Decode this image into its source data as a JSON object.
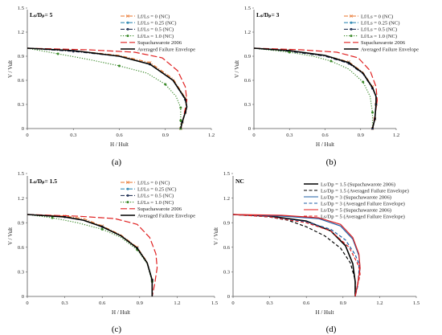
{
  "figure": {
    "panels": [
      {
        "label": "(a)",
        "title": "Lₛ/Dₚ= 5"
      },
      {
        "label": "(b)",
        "title": "Lₛ/Dₚ= 3"
      },
      {
        "label": "(c)",
        "title": "Lₛ/Dₚ= 1.5"
      },
      {
        "label": "(d)",
        "title": "NC"
      }
    ]
  },
  "chart_data": [
    {
      "type": "line",
      "title": "Lₛ/Dₚ= 5",
      "xlabel": "H / Hult",
      "ylabel": "V / Vult",
      "xlim": [
        0,
        1.2
      ],
      "ylim": [
        0,
        1.5
      ],
      "xticks": [
        "0",
        "0.3",
        "0.6",
        "0.9",
        "1.2"
      ],
      "yticks": [
        "0",
        "0.3",
        "0.6",
        "0.9",
        "1.2",
        "1.5"
      ],
      "grid": false,
      "legend_position": "top-right",
      "series": [
        {
          "name": "Lf/Ls = 0 (NC)",
          "color": "#e8732a",
          "style": "dashdot",
          "marker": "x",
          "x": [
            0,
            0.3,
            0.6,
            0.8,
            0.95,
            1.03,
            1.04,
            1.03,
            1.01,
            1.0
          ],
          "y": [
            1.0,
            0.97,
            0.91,
            0.82,
            0.62,
            0.38,
            0.28,
            0.2,
            0.08,
            0
          ]
        },
        {
          "name": "Lf/Ls = 0.25 (NC)",
          "color": "#3a8fb7",
          "style": "dashdot",
          "marker": "circle",
          "x": [
            0,
            0.3,
            0.6,
            0.8,
            0.95,
            1.03,
            1.04,
            1.03,
            1.01,
            1.0
          ],
          "y": [
            1.0,
            0.97,
            0.9,
            0.8,
            0.6,
            0.36,
            0.27,
            0.2,
            0.08,
            0
          ]
        },
        {
          "name": "Lf/Ls = 0.5 (NC)",
          "color": "#2a3a5c",
          "style": "dashdot",
          "marker": "circle",
          "x": [
            0,
            0.3,
            0.6,
            0.8,
            0.95,
            1.03,
            1.04,
            1.03,
            1.01,
            1.0
          ],
          "y": [
            1.0,
            0.96,
            0.9,
            0.8,
            0.6,
            0.36,
            0.27,
            0.2,
            0.08,
            0
          ]
        },
        {
          "name": "Lf/Ls = 1.0 (NC)",
          "color": "#3b8a2a",
          "style": "dotted",
          "marker": "circle",
          "x": [
            0,
            0.2,
            0.4,
            0.6,
            0.78,
            0.9,
            0.97,
            1.0,
            1.0,
            1.0
          ],
          "y": [
            1.0,
            0.93,
            0.86,
            0.78,
            0.69,
            0.55,
            0.4,
            0.26,
            0.1,
            0
          ]
        },
        {
          "name": "Supachawarote 2006",
          "color": "#e02020",
          "style": "longdash",
          "marker": "none",
          "x": [
            0,
            0.4,
            0.7,
            0.88,
            0.98,
            1.03,
            1.04,
            1.02,
            1.0
          ],
          "y": [
            1.0,
            0.98,
            0.95,
            0.88,
            0.72,
            0.52,
            0.35,
            0.15,
            0
          ]
        },
        {
          "name": "Averaged Failure Envelope",
          "color": "#000000",
          "style": "solid",
          "marker": "none",
          "x": [
            0,
            0.3,
            0.6,
            0.8,
            0.95,
            1.03,
            1.04,
            1.03,
            1.01,
            1.0
          ],
          "y": [
            1.0,
            0.97,
            0.9,
            0.8,
            0.6,
            0.37,
            0.27,
            0.2,
            0.08,
            0
          ]
        }
      ]
    },
    {
      "type": "line",
      "title": "Lₛ/Dₚ= 3",
      "xlabel": "H / Hult",
      "ylabel": "V / Vult",
      "xlim": [
        0,
        1.2
      ],
      "ylim": [
        0,
        1.5
      ],
      "xticks": [
        "0",
        "0.3",
        "0.6",
        "0.9",
        "1.2"
      ],
      "yticks": [
        "0",
        "0.3",
        "0.6",
        "0.9",
        "1.2",
        "1.5"
      ],
      "grid": false,
      "legend_position": "top-right",
      "series": [
        {
          "name": "Lf/Ls = 0 (NC)",
          "color": "#e8732a",
          "style": "dashdot",
          "marker": "x",
          "x": [
            0,
            0.3,
            0.6,
            0.8,
            0.92,
            1.0,
            1.03,
            1.03,
            1.02,
            1.0
          ],
          "y": [
            1.0,
            0.97,
            0.91,
            0.83,
            0.7,
            0.52,
            0.4,
            0.3,
            0.12,
            0
          ]
        },
        {
          "name": "Lf/Ls = 0.25 (NC)",
          "color": "#3a8fb7",
          "style": "dashdot",
          "marker": "circle",
          "x": [
            0,
            0.3,
            0.6,
            0.8,
            0.92,
            1.0,
            1.03,
            1.03,
            1.02,
            1.0
          ],
          "y": [
            1.0,
            0.97,
            0.91,
            0.82,
            0.69,
            0.5,
            0.4,
            0.3,
            0.12,
            0
          ]
        },
        {
          "name": "Lf/Ls = 0.5 (NC)",
          "color": "#2a3a5c",
          "style": "dashdot",
          "marker": "circle",
          "x": [
            0,
            0.3,
            0.6,
            0.8,
            0.92,
            1.0,
            1.03,
            1.03,
            1.02,
            1.0
          ],
          "y": [
            1.0,
            0.96,
            0.9,
            0.81,
            0.68,
            0.5,
            0.4,
            0.3,
            0.12,
            0
          ]
        },
        {
          "name": "Lf/Ls = 1.0 (NC)",
          "color": "#3b8a2a",
          "style": "dotted",
          "marker": "circle",
          "x": [
            0,
            0.3,
            0.5,
            0.65,
            0.8,
            0.92,
            0.98,
            1.0,
            1.0
          ],
          "y": [
            1.0,
            0.95,
            0.9,
            0.84,
            0.74,
            0.58,
            0.4,
            0.2,
            0
          ]
        },
        {
          "name": "Supachawarote 2006",
          "color": "#e02020",
          "style": "longdash",
          "marker": "none",
          "x": [
            0,
            0.4,
            0.7,
            0.88,
            0.98,
            1.03,
            1.04,
            1.02,
            1.0
          ],
          "y": [
            1.0,
            0.98,
            0.95,
            0.88,
            0.72,
            0.52,
            0.35,
            0.15,
            0
          ]
        },
        {
          "name": "Averaged Failure Envelope",
          "color": "#000000",
          "style": "solid",
          "marker": "none",
          "x": [
            0,
            0.3,
            0.6,
            0.8,
            0.92,
            1.0,
            1.03,
            1.03,
            1.02,
            1.0
          ],
          "y": [
            1.0,
            0.97,
            0.91,
            0.82,
            0.69,
            0.51,
            0.4,
            0.3,
            0.12,
            0
          ]
        }
      ]
    },
    {
      "type": "line",
      "title": "Lₛ/Dₚ= 1.5",
      "xlabel": "H / Hult",
      "ylabel": "V / Vult",
      "xlim": [
        0,
        1.5
      ],
      "ylim": [
        0,
        1.5
      ],
      "xticks": [
        "0",
        "0.3",
        "0.6",
        "0.9",
        "1.2",
        "1.5"
      ],
      "yticks": [
        "0",
        "0.3",
        "0.6",
        "0.9",
        "1.2",
        "1.5"
      ],
      "grid": false,
      "legend_position": "top-right",
      "series": [
        {
          "name": "Lf/Ls = 0 (NC)",
          "color": "#e8732a",
          "style": "dashdot",
          "marker": "x",
          "x": [
            0,
            0.3,
            0.45,
            0.6,
            0.75,
            0.88,
            0.96,
            1.0,
            1.0
          ],
          "y": [
            1.0,
            0.98,
            0.95,
            0.86,
            0.75,
            0.6,
            0.42,
            0.2,
            0
          ]
        },
        {
          "name": "Lf/Ls = 0.25 (NC)",
          "color": "#3a8fb7",
          "style": "dashdot",
          "marker": "circle",
          "x": [
            0,
            0.3,
            0.45,
            0.6,
            0.75,
            0.88,
            0.96,
            1.0,
            1.0
          ],
          "y": [
            1.0,
            0.97,
            0.93,
            0.85,
            0.74,
            0.59,
            0.41,
            0.2,
            0
          ]
        },
        {
          "name": "Lf/Ls = 0.5 (NC)",
          "color": "#2a3a5c",
          "style": "dashdot",
          "marker": "circle",
          "x": [
            0,
            0.3,
            0.45,
            0.6,
            0.75,
            0.88,
            0.96,
            1.0,
            1.0
          ],
          "y": [
            1.0,
            0.97,
            0.93,
            0.85,
            0.74,
            0.59,
            0.41,
            0.2,
            0
          ]
        },
        {
          "name": "Lf/Ls = 1.0 (NC)",
          "color": "#3b8a2a",
          "style": "dotted",
          "marker": "circle",
          "x": [
            0,
            0.2,
            0.4,
            0.6,
            0.75,
            0.88,
            0.96,
            1.0,
            1.0
          ],
          "y": [
            1.0,
            0.96,
            0.9,
            0.82,
            0.72,
            0.57,
            0.4,
            0.18,
            0
          ]
        },
        {
          "name": "Supachawarote 2006",
          "color": "#e02020",
          "style": "longdash",
          "marker": "none",
          "x": [
            0,
            0.4,
            0.7,
            0.88,
            0.98,
            1.03,
            1.04,
            1.02,
            1.0
          ],
          "y": [
            1.0,
            0.98,
            0.95,
            0.88,
            0.72,
            0.52,
            0.35,
            0.15,
            0
          ]
        },
        {
          "name": "Averaged Failure Envelope",
          "color": "#000000",
          "style": "solid",
          "marker": "none",
          "x": [
            0,
            0.3,
            0.45,
            0.6,
            0.75,
            0.88,
            0.96,
            1.0,
            1.0
          ],
          "y": [
            1.0,
            0.97,
            0.93,
            0.85,
            0.74,
            0.59,
            0.41,
            0.2,
            0
          ]
        }
      ]
    },
    {
      "type": "line",
      "title": "NC",
      "xlabel": "H / Hult",
      "ylabel": "V / Vult",
      "xlim": [
        0,
        1.5
      ],
      "ylim": [
        0,
        1.5
      ],
      "xticks": [
        "0",
        "0.3",
        "0.6",
        "0.9",
        "1.2",
        "1.5"
      ],
      "yticks": [
        "0",
        "0.3",
        "0.6",
        "0.9",
        "1.2",
        "1.5"
      ],
      "grid": false,
      "legend_position": "top-right",
      "series": [
        {
          "name": "Ls/Dp = 1.5 (Supachawarote 2006)",
          "color": "#000000",
          "style": "solid",
          "marker": "none",
          "x": [
            0,
            0.3,
            0.6,
            0.8,
            0.92,
            0.98,
            1.0,
            1.0
          ],
          "y": [
            1.0,
            0.98,
            0.92,
            0.8,
            0.62,
            0.4,
            0.18,
            0
          ]
        },
        {
          "name": "Ls/Dp = 1.5 (Averaged Failure Envelope)",
          "color": "#000000",
          "style": "dashed",
          "marker": "none",
          "x": [
            0,
            0.3,
            0.45,
            0.6,
            0.75,
            0.88,
            0.96,
            1.0,
            1.0
          ],
          "y": [
            1.0,
            0.97,
            0.93,
            0.85,
            0.74,
            0.59,
            0.41,
            0.2,
            0
          ]
        },
        {
          "name": "Ls/Dp = 3 (Supachawarote 2006)",
          "color": "#1f5fa6",
          "style": "solid",
          "marker": "none",
          "x": [
            0,
            0.4,
            0.7,
            0.88,
            0.98,
            1.03,
            1.04,
            1.02,
            1.0
          ],
          "y": [
            1.0,
            0.98,
            0.95,
            0.86,
            0.7,
            0.5,
            0.34,
            0.15,
            0
          ]
        },
        {
          "name": "Ls/Dp = 3 (Averaged Failure Envelope)",
          "color": "#1f5fa6",
          "style": "dashed",
          "marker": "none",
          "x": [
            0,
            0.3,
            0.6,
            0.8,
            0.92,
            1.0,
            1.03,
            1.03,
            1.02,
            1.0
          ],
          "y": [
            1.0,
            0.97,
            0.91,
            0.82,
            0.69,
            0.51,
            0.4,
            0.3,
            0.12,
            0
          ]
        },
        {
          "name": "Ls/Dp = 5 (Supachawarote 2006)",
          "color": "#e02020",
          "style": "solid",
          "marker": "none",
          "x": [
            0,
            0.4,
            0.7,
            0.88,
            0.98,
            1.03,
            1.04,
            1.02,
            1.0
          ],
          "y": [
            1.0,
            0.99,
            0.96,
            0.88,
            0.72,
            0.52,
            0.35,
            0.15,
            0
          ]
        },
        {
          "name": "Ls/Dp = 5 (Averaged Failure Envelope)",
          "color": "#e02020",
          "style": "dashed",
          "marker": "none",
          "x": [
            0,
            0.3,
            0.6,
            0.8,
            0.95,
            1.03,
            1.04,
            1.03,
            1.01,
            1.0
          ],
          "y": [
            1.0,
            0.97,
            0.9,
            0.8,
            0.6,
            0.37,
            0.27,
            0.2,
            0.08,
            0
          ]
        }
      ]
    }
  ]
}
